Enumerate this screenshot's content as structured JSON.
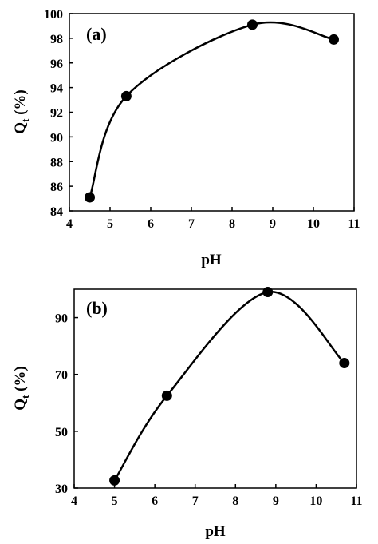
{
  "chart_data": [
    {
      "type": "line",
      "panel_label": "(a)",
      "xlabel": "pH",
      "ylabel_main": "Q",
      "ylabel_sub": "t",
      "ylabel_unit": " (%)",
      "xlim": [
        4,
        11
      ],
      "ylim": [
        84,
        100
      ],
      "xticks": [
        "4",
        "5",
        "6",
        "7",
        "8",
        "9",
        "10",
        "11"
      ],
      "yticks": [
        "84",
        "86",
        "88",
        "90",
        "92",
        "94",
        "96",
        "98",
        "100"
      ],
      "x": [
        4.5,
        5.4,
        8.5,
        10.5
      ],
      "y": [
        85.1,
        93.3,
        99.1,
        97.9
      ],
      "smooth": true,
      "grid": false,
      "marker": "circle",
      "color": "#000000"
    },
    {
      "type": "line",
      "panel_label": "(b)",
      "xlabel": "pH",
      "ylabel_main": "Q",
      "ylabel_sub": "t",
      "ylabel_unit": " (%)",
      "xlim": [
        4,
        11
      ],
      "ylim": [
        30,
        100
      ],
      "xticks": [
        "4",
        "5",
        "6",
        "7",
        "8",
        "9",
        "10",
        "11"
      ],
      "yticks": [
        "30",
        "50",
        "70",
        "90"
      ],
      "x": [
        5.0,
        6.3,
        8.8,
        10.7
      ],
      "y": [
        32.7,
        62.5,
        99.0,
        74.0
      ],
      "smooth": true,
      "grid": false,
      "marker": "circle",
      "color": "#000000"
    }
  ]
}
